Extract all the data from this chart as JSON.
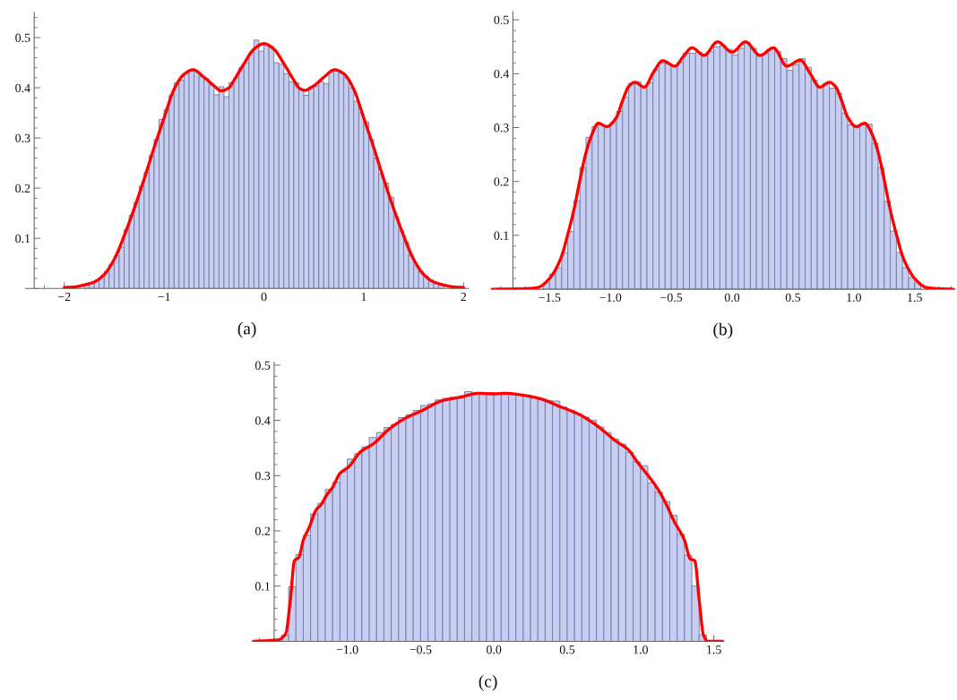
{
  "chart_data": [
    {
      "type": "histogram",
      "xlabel": "(a)",
      "xlim": [
        -2.39,
        2.05
      ],
      "ylim": [
        0,
        0.55
      ],
      "xticks": [
        {
          "value": -2,
          "label": "−2"
        },
        {
          "value": -1,
          "label": "−1"
        },
        0,
        1,
        2
      ],
      "yticks": [
        0.1,
        0.2,
        0.3,
        0.4,
        0.5
      ],
      "series": [
        {
          "color": "#c7cef5",
          "bins": [
            -1.8,
            -1.75,
            -1.7,
            -1.65,
            -1.6,
            -1.55,
            -1.5,
            -1.45,
            -1.4,
            -1.35,
            -1.3,
            -1.25,
            -1.2,
            -1.15,
            -1.1,
            -1.05,
            -1.0,
            -0.95,
            -0.9,
            -0.85,
            -0.8,
            -0.75,
            -0.7,
            -0.65,
            -0.6,
            -0.55,
            -0.5,
            -0.45,
            -0.4,
            -0.35,
            -0.3,
            -0.25,
            -0.2,
            -0.15,
            -0.1,
            -0.05,
            0.0,
            0.05,
            0.1,
            0.15,
            0.2,
            0.25,
            0.3,
            0.35,
            0.4,
            0.45,
            0.5,
            0.55,
            0.6,
            0.65,
            0.7,
            0.75,
            0.8,
            0.85,
            0.9,
            0.95,
            1.0,
            1.05,
            1.1,
            1.15,
            1.2,
            1.25,
            1.3,
            1.35,
            1.4,
            1.45,
            1.5,
            1.55,
            1.6,
            1.65,
            1.7,
            1.75,
            1.8
          ],
          "values": [
            0.008,
            0.011,
            0.016,
            0.022,
            0.034,
            0.048,
            0.065,
            0.082,
            0.118,
            0.146,
            0.172,
            0.204,
            0.232,
            0.265,
            0.297,
            0.337,
            0.357,
            0.385,
            0.41,
            0.415,
            0.43,
            0.433,
            0.432,
            0.422,
            0.418,
            0.405,
            0.386,
            0.402,
            0.382,
            0.41,
            0.42,
            0.44,
            0.45,
            0.47,
            0.495,
            0.473,
            0.486,
            0.482,
            0.45,
            0.447,
            0.428,
            0.412,
            0.41,
            0.395,
            0.385,
            0.402,
            0.403,
            0.412,
            0.408,
            0.433,
            0.435,
            0.43,
            0.42,
            0.4,
            0.373,
            0.35,
            0.332,
            0.297,
            0.26,
            0.228,
            0.21,
            0.182,
            0.143,
            0.115,
            0.092,
            0.066,
            0.045,
            0.034,
            0.024,
            0.017,
            0.01,
            0.008
          ]
        },
        {
          "type": "line",
          "color": "#ff0000",
          "x": [
            -2.0,
            -1.9,
            -1.8,
            -1.7,
            -1.6,
            -1.5,
            -1.4,
            -1.3,
            -1.2,
            -1.1,
            -1.0,
            -0.9,
            -0.8,
            -0.71,
            -0.6,
            -0.5,
            -0.43,
            -0.35,
            -0.3,
            -0.2,
            -0.1,
            0.0,
            0.1,
            0.2,
            0.3,
            0.35,
            0.41,
            0.5,
            0.6,
            0.71,
            0.8,
            0.9,
            1.0,
            1.1,
            1.2,
            1.3,
            1.4,
            1.5,
            1.6,
            1.7,
            1.8,
            1.9,
            2.0
          ],
          "values": [
            0.002,
            0.003,
            0.007,
            0.013,
            0.028,
            0.058,
            0.105,
            0.159,
            0.218,
            0.281,
            0.34,
            0.397,
            0.427,
            0.436,
            0.421,
            0.404,
            0.394,
            0.4,
            0.415,
            0.448,
            0.477,
            0.488,
            0.477,
            0.448,
            0.415,
            0.4,
            0.395,
            0.404,
            0.421,
            0.436,
            0.428,
            0.397,
            0.34,
            0.281,
            0.218,
            0.159,
            0.105,
            0.058,
            0.028,
            0.013,
            0.007,
            0.003,
            0.002
          ]
        }
      ]
    },
    {
      "type": "histogram",
      "xlabel": "(b)",
      "xlim": [
        -1.98,
        1.83
      ],
      "ylim": [
        0,
        0.515
      ],
      "xticks": [
        {
          "value": -1.5,
          "label": "−1.5"
        },
        {
          "value": -1.0,
          "label": "−1.0"
        },
        {
          "value": -0.5,
          "label": "−0.5"
        },
        {
          "value": 0,
          "label": "0.0"
        },
        0.5,
        {
          "value": 1,
          "label": "1.0"
        },
        1.5
      ],
      "yticks": [
        0.1,
        0.2,
        0.3,
        0.4,
        0.5
      ],
      "series": [
        {
          "color": "#c7cef5",
          "bins": [
            -1.55,
            -1.5,
            -1.45,
            -1.4,
            -1.35,
            -1.3,
            -1.25,
            -1.2,
            -1.15,
            -1.1,
            -1.05,
            -1.0,
            -0.95,
            -0.9,
            -0.85,
            -0.8,
            -0.75,
            -0.7,
            -0.65,
            -0.6,
            -0.55,
            -0.5,
            -0.45,
            -0.4,
            -0.35,
            -0.3,
            -0.25,
            -0.2,
            -0.15,
            -0.1,
            -0.05,
            0.0,
            0.05,
            0.1,
            0.15,
            0.2,
            0.25,
            0.3,
            0.35,
            0.4,
            0.45,
            0.5,
            0.55,
            0.6,
            0.65,
            0.7,
            0.75,
            0.8,
            0.85,
            0.9,
            0.95,
            1.0,
            1.05,
            1.1,
            1.15,
            1.2,
            1.25,
            1.3,
            1.35,
            1.4,
            1.45,
            1.5,
            1.55
          ],
          "values": [
            0.012,
            0.028,
            0.04,
            0.068,
            0.107,
            0.164,
            0.226,
            0.282,
            0.302,
            0.306,
            0.302,
            0.309,
            0.33,
            0.356,
            0.382,
            0.385,
            0.376,
            0.383,
            0.407,
            0.42,
            0.418,
            0.414,
            0.421,
            0.438,
            0.438,
            0.44,
            0.433,
            0.441,
            0.45,
            0.452,
            0.445,
            0.435,
            0.447,
            0.458,
            0.447,
            0.432,
            0.437,
            0.446,
            0.441,
            0.428,
            0.406,
            0.417,
            0.428,
            0.412,
            0.388,
            0.376,
            0.382,
            0.373,
            0.364,
            0.327,
            0.305,
            0.3,
            0.305,
            0.306,
            0.271,
            0.226,
            0.163,
            0.108,
            0.068,
            0.04,
            0.022,
            0.012
          ]
        },
        {
          "type": "line",
          "color": "#ff0000",
          "x": [
            -1.975,
            -1.7,
            -1.6,
            -1.5,
            -1.45,
            -1.4,
            -1.35,
            -1.3,
            -1.25,
            -1.2,
            -1.15,
            -1.1,
            -1.03,
            -0.95,
            -0.9,
            -0.85,
            -0.8,
            -0.72,
            -0.65,
            -0.57,
            -0.47,
            -0.4,
            -0.33,
            -0.23,
            -0.12,
            0.0,
            0.11,
            0.23,
            0.34,
            0.45,
            0.56,
            0.64,
            0.72,
            0.8,
            0.85,
            0.9,
            0.95,
            1.02,
            1.09,
            1.15,
            1.2,
            1.25,
            1.3,
            1.35,
            1.4,
            1.45,
            1.5,
            1.6,
            1.7,
            1.82
          ],
          "values": [
            0.0,
            0.001,
            0.003,
            0.02,
            0.037,
            0.062,
            0.102,
            0.147,
            0.203,
            0.254,
            0.288,
            0.308,
            0.302,
            0.319,
            0.35,
            0.376,
            0.384,
            0.375,
            0.401,
            0.424,
            0.414,
            0.432,
            0.448,
            0.434,
            0.459,
            0.44,
            0.459,
            0.434,
            0.448,
            0.414,
            0.425,
            0.401,
            0.375,
            0.384,
            0.376,
            0.35,
            0.319,
            0.302,
            0.308,
            0.288,
            0.254,
            0.203,
            0.147,
            0.102,
            0.062,
            0.037,
            0.02,
            0.003,
            0.001,
            0.0
          ]
        }
      ]
    },
    {
      "type": "histogram",
      "xlabel": "(c)",
      "xlim": [
        -1.65,
        1.57
      ],
      "ylim": [
        0,
        0.505
      ],
      "xticks": [
        {
          "value": -1.0,
          "label": "−1.0"
        },
        {
          "value": -0.5,
          "label": "−0.5"
        },
        {
          "value": 0,
          "label": "0.0"
        },
        0.5,
        {
          "value": 1,
          "label": "1.0"
        },
        1.5
      ],
      "yticks": [
        0.1,
        0.2,
        0.3,
        0.4,
        0.5
      ],
      "series": [
        {
          "color": "#c7cef5",
          "bins": [
            -1.45,
            -1.4,
            -1.35,
            -1.3,
            -1.25,
            -1.2,
            -1.15,
            -1.1,
            -1.05,
            -1.0,
            -0.95,
            -0.9,
            -0.85,
            -0.8,
            -0.75,
            -0.7,
            -0.65,
            -0.6,
            -0.55,
            -0.5,
            -0.45,
            -0.4,
            -0.35,
            -0.3,
            -0.25,
            -0.2,
            -0.15,
            -0.1,
            -0.05,
            0.0,
            0.05,
            0.1,
            0.15,
            0.2,
            0.25,
            0.3,
            0.35,
            0.4,
            0.45,
            0.5,
            0.55,
            0.6,
            0.65,
            0.7,
            0.75,
            0.8,
            0.85,
            0.9,
            0.95,
            1.0,
            1.05,
            1.1,
            1.15,
            1.2,
            1.25,
            1.3,
            1.35,
            1.4,
            1.45
          ],
          "values": [
            0.011,
            0.099,
            0.157,
            0.192,
            0.231,
            0.25,
            0.275,
            0.288,
            0.307,
            0.33,
            0.34,
            0.352,
            0.369,
            0.378,
            0.387,
            0.393,
            0.405,
            0.41,
            0.418,
            0.427,
            0.43,
            0.437,
            0.44,
            0.442,
            0.44,
            0.452,
            0.45,
            0.45,
            0.45,
            0.448,
            0.45,
            0.447,
            0.446,
            0.446,
            0.442,
            0.438,
            0.436,
            0.435,
            0.424,
            0.418,
            0.412,
            0.406,
            0.4,
            0.388,
            0.378,
            0.366,
            0.357,
            0.342,
            0.325,
            0.318,
            0.287,
            0.27,
            0.253,
            0.228,
            0.194,
            0.156,
            0.1,
            0.012
          ]
        },
        {
          "type": "line",
          "color": "#ff0000",
          "x": [
            -1.64,
            -1.47,
            -1.42,
            -1.39,
            -1.36,
            -1.33,
            -1.3,
            -1.26,
            -1.21,
            -1.18,
            -1.14,
            -1.1,
            -1.05,
            -0.99,
            -0.91,
            -0.82,
            -0.72,
            -0.61,
            -0.48,
            -0.36,
            -0.23,
            -0.1,
            0.0,
            0.08,
            0.19,
            0.32,
            0.45,
            0.58,
            0.7,
            0.83,
            0.92,
            0.98,
            1.04,
            1.11,
            1.17,
            1.23,
            1.3,
            1.34,
            1.37,
            1.4,
            1.43,
            1.46,
            1.56
          ],
          "values": [
            0.0,
            0.003,
            0.014,
            0.07,
            0.146,
            0.152,
            0.183,
            0.206,
            0.239,
            0.247,
            0.265,
            0.279,
            0.304,
            0.316,
            0.343,
            0.358,
            0.383,
            0.403,
            0.419,
            0.435,
            0.442,
            0.449,
            0.448,
            0.449,
            0.446,
            0.439,
            0.425,
            0.411,
            0.391,
            0.363,
            0.346,
            0.324,
            0.304,
            0.279,
            0.251,
            0.217,
            0.183,
            0.149,
            0.146,
            0.076,
            0.011,
            0.0,
            0.0
          ]
        }
      ]
    }
  ]
}
